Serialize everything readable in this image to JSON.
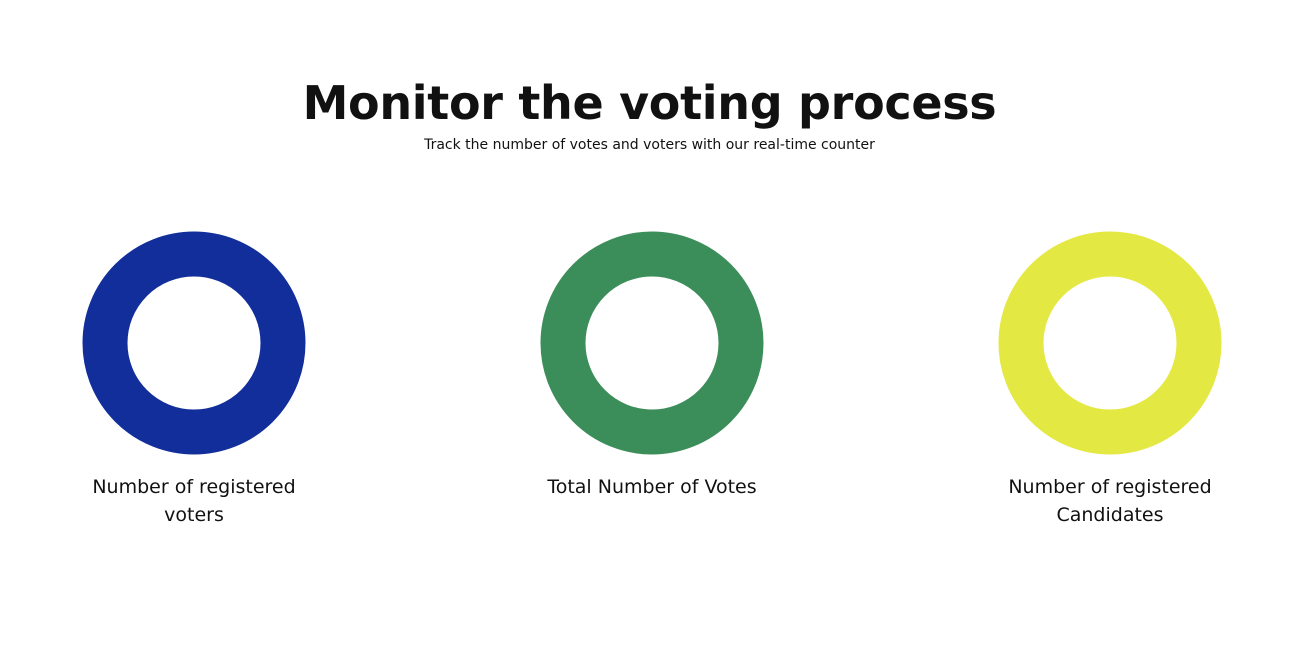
{
  "header": {
    "title": "Monitor the voting process",
    "subtitle": "Track the number of votes and voters with our real-time counter"
  },
  "counters": [
    {
      "label": "Number of registered voters",
      "color": "#112e9b",
      "icon": "progress-ring"
    },
    {
      "label": "Total Number of Votes",
      "color": "#3b8d59",
      "icon": "progress-ring"
    },
    {
      "label": "Number of registered Candidates",
      "color": "#e4e842",
      "icon": "progress-ring"
    }
  ]
}
